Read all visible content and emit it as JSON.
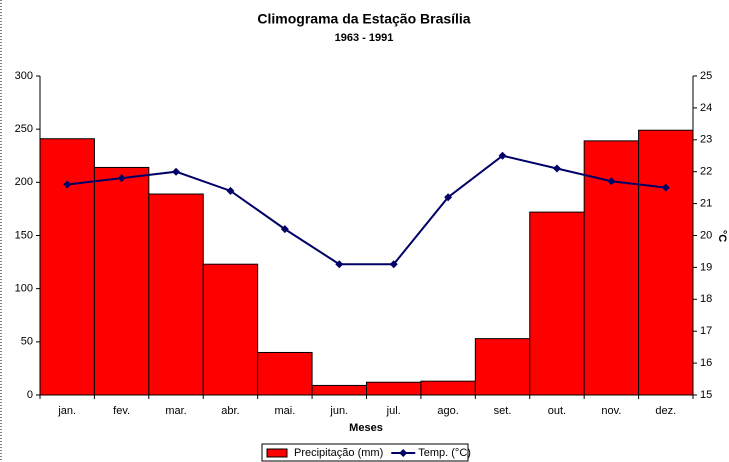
{
  "chart_data": {
    "type": "combo",
    "title": "Climograma da Estação Brasília",
    "subtitle": "1963 - 1991",
    "x_label": "Meses",
    "y2_label": "°C",
    "categories": [
      "jan.",
      "fev.",
      "mar.",
      "abr.",
      "mai.",
      "jun.",
      "jul.",
      "ago.",
      "set.",
      "out.",
      "nov.",
      "dez."
    ],
    "series": [
      {
        "name": "Precipitação (mm)",
        "type": "bar",
        "color": "#ff0000",
        "values": [
          241,
          214,
          189,
          123,
          40,
          9,
          12,
          13,
          53,
          172,
          239,
          249
        ]
      },
      {
        "name": "Temp. (°C)",
        "type": "line",
        "axis": "y2",
        "color": "#000066",
        "values": [
          21.6,
          21.8,
          22.0,
          21.4,
          20.2,
          19.1,
          19.1,
          21.2,
          22.5,
          22.1,
          21.7,
          21.5
        ]
      }
    ],
    "ylim": [
      0,
      300
    ],
    "yticks": [
      0,
      50,
      100,
      150,
      200,
      250,
      300
    ],
    "y2lim": [
      15,
      25
    ],
    "y2ticks": [
      15,
      16,
      17,
      18,
      19,
      20,
      21,
      22,
      23,
      24,
      25
    ],
    "legend": "bottom"
  }
}
